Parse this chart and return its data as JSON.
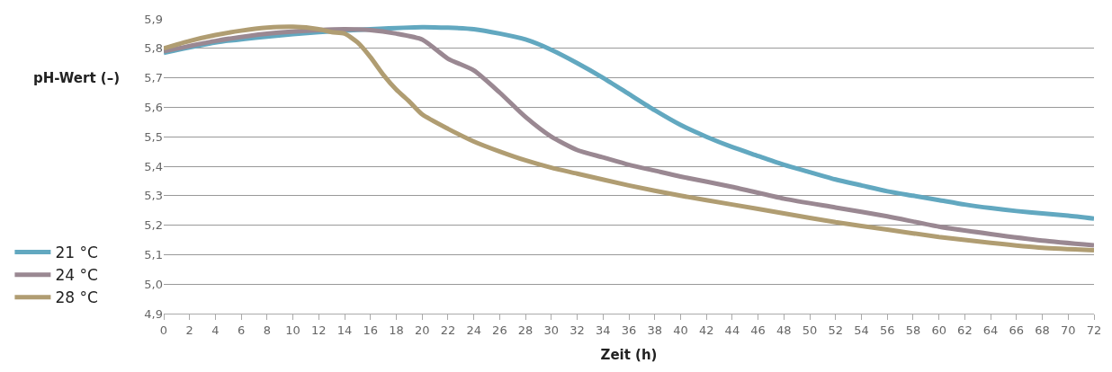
{
  "chart_data": {
    "type": "line",
    "xlabel": "Zeit (h)",
    "ylabel": "pH-Wert (–)",
    "xlim": [
      0,
      72
    ],
    "xticks": [
      0,
      2,
      4,
      6,
      8,
      10,
      12,
      14,
      16,
      18,
      20,
      22,
      24,
      26,
      28,
      30,
      32,
      34,
      36,
      38,
      40,
      42,
      44,
      46,
      48,
      50,
      52,
      54,
      56,
      58,
      60,
      62,
      64,
      66,
      68,
      70,
      72
    ],
    "ylim": [
      4.9,
      5.9
    ],
    "yticks": [
      {
        "value": 4.9,
        "label": "4,9"
      },
      {
        "value": 5.0,
        "label": "5,0"
      },
      {
        "value": 5.1,
        "label": "5,1"
      },
      {
        "value": 5.2,
        "label": "5,2"
      },
      {
        "value": 5.3,
        "label": "5,3"
      },
      {
        "value": 5.4,
        "label": "5,4"
      },
      {
        "value": 5.5,
        "label": "5,5"
      },
      {
        "value": 5.6,
        "label": "5,6"
      },
      {
        "value": 5.7,
        "label": "5,7"
      },
      {
        "value": 5.8,
        "label": "5,8"
      },
      {
        "value": 5.9,
        "label": "5,9"
      }
    ],
    "grid": "y",
    "legend": "left",
    "marker": "none",
    "line_style": "solid",
    "series": [
      {
        "name": "21 °C",
        "color": "#62a8c0",
        "x": [
          0,
          4,
          8,
          12,
          16,
          20,
          22,
          24,
          26,
          28,
          30,
          32,
          34,
          36,
          38,
          40,
          42,
          44,
          46,
          48,
          50,
          52,
          54,
          56,
          58,
          60,
          62,
          64,
          66,
          68,
          70,
          72
        ],
        "values": [
          5.785,
          5.82,
          5.84,
          5.855,
          5.865,
          5.872,
          5.87,
          5.865,
          5.85,
          5.83,
          5.795,
          5.75,
          5.7,
          5.645,
          5.59,
          5.54,
          5.5,
          5.465,
          5.435,
          5.405,
          5.38,
          5.355,
          5.335,
          5.315,
          5.3,
          5.285,
          5.27,
          5.258,
          5.248,
          5.24,
          5.232,
          5.222
        ]
      },
      {
        "name": "24 °C",
        "color": "#9a8892",
        "x": [
          0,
          4,
          8,
          12,
          14,
          16,
          18,
          20,
          22,
          24,
          26,
          28,
          30,
          32,
          34,
          36,
          38,
          40,
          44,
          48,
          52,
          56,
          60,
          64,
          68,
          72
        ],
        "values": [
          5.79,
          5.825,
          5.85,
          5.862,
          5.865,
          5.862,
          5.85,
          5.83,
          5.765,
          5.725,
          5.65,
          5.567,
          5.5,
          5.455,
          5.43,
          5.405,
          5.385,
          5.365,
          5.33,
          5.29,
          5.26,
          5.23,
          5.195,
          5.17,
          5.148,
          5.132
        ]
      },
      {
        "name": "28 °C",
        "color": "#b09d72",
        "x": [
          0,
          2,
          4,
          6,
          8,
          10,
          12,
          13,
          14,
          15,
          16,
          17,
          18,
          19,
          20,
          22,
          24,
          26,
          28,
          30,
          32,
          36,
          40,
          44,
          48,
          52,
          56,
          60,
          64,
          68,
          72
        ],
        "values": [
          5.8,
          5.825,
          5.845,
          5.86,
          5.87,
          5.873,
          5.865,
          5.855,
          5.85,
          5.82,
          5.77,
          5.71,
          5.66,
          5.62,
          5.576,
          5.527,
          5.484,
          5.45,
          5.42,
          5.395,
          5.375,
          5.335,
          5.3,
          5.27,
          5.24,
          5.21,
          5.185,
          5.16,
          5.14,
          5.123,
          5.115
        ]
      }
    ]
  }
}
